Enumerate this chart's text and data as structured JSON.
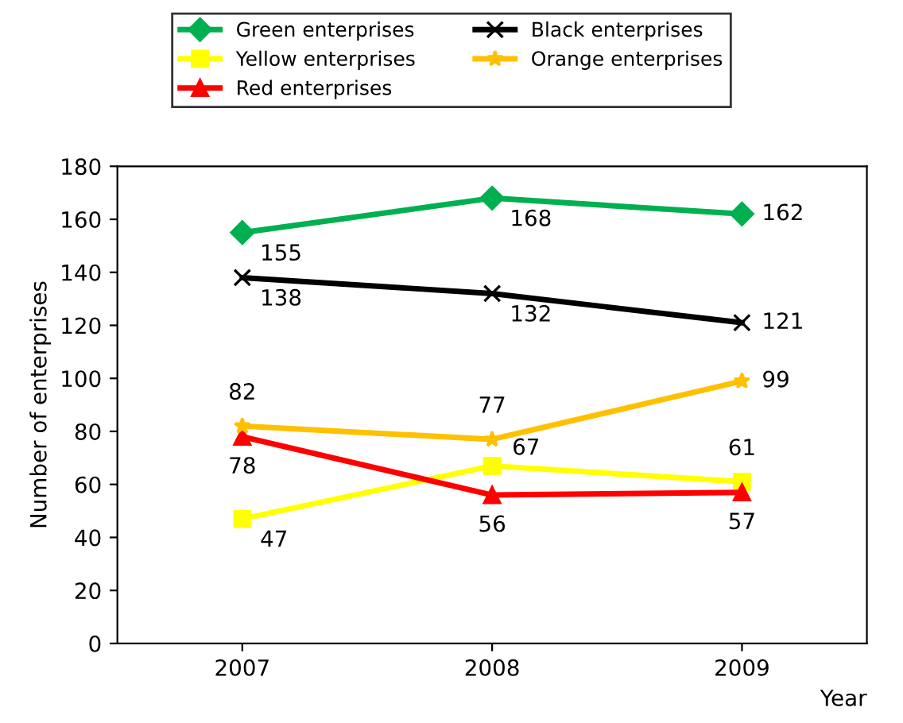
{
  "chart_data": {
    "type": "line",
    "xlabel": "Year",
    "ylabel": "Number of enterprises",
    "categories": [
      "2007",
      "2008",
      "2009"
    ],
    "series": [
      {
        "name": "Green enterprises",
        "color": "#00b050",
        "marker": "diamond",
        "values": [
          155,
          168,
          162
        ]
      },
      {
        "name": "Yellow enterprises",
        "color": "#ffff00",
        "marker": "square",
        "values": [
          47,
          67,
          61
        ]
      },
      {
        "name": "Red enterprises",
        "color": "#ff0000",
        "marker": "triangle",
        "values": [
          78,
          56,
          57
        ]
      },
      {
        "name": "Black enterprises",
        "color": "#000000",
        "marker": "cross",
        "values": [
          138,
          132,
          121
        ]
      },
      {
        "name": "Orange enterprises",
        "color": "#ffc000",
        "marker": "star",
        "values": [
          82,
          77,
          99
        ]
      }
    ],
    "ylim": [
      0,
      180
    ],
    "yticks": [
      0,
      20,
      40,
      60,
      80,
      100,
      120,
      140,
      160,
      180
    ],
    "data_labels": true,
    "legend": "top",
    "grid": false
  }
}
